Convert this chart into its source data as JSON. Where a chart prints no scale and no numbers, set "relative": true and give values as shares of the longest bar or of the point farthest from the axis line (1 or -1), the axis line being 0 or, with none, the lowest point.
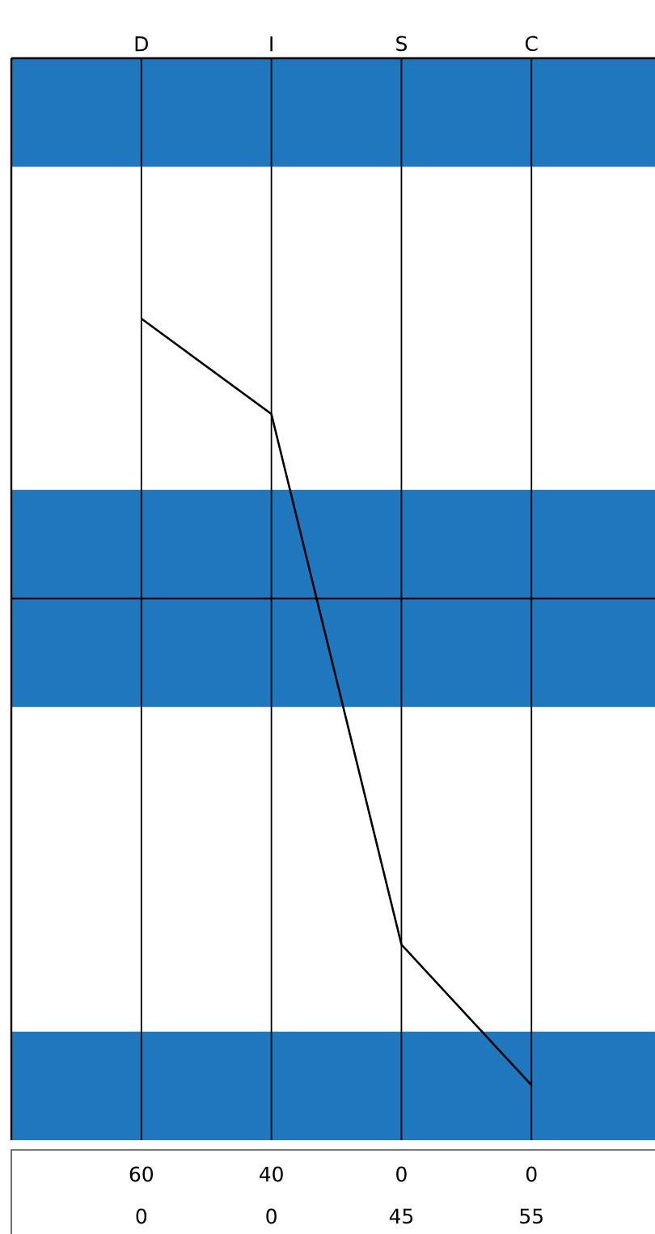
{
  "chart_data": {
    "type": "line",
    "relative": true,
    "categories": [
      "D",
      "I",
      "S",
      "C"
    ],
    "series": [
      {
        "color": "#000000",
        "values": [
          0.575,
          0.379,
          -0.711,
          -1
        ]
      }
    ],
    "bands": [
      {
        "axis": "y",
        "from": 0.887,
        "to": 1.11,
        "color": "#1f77bd"
      },
      {
        "axis": "y",
        "from": -0.223,
        "to": 0.223,
        "color": "#1f77bd"
      },
      {
        "axis": "y",
        "from": -1.113,
        "to": -0.89,
        "color": "#1f77bd"
      }
    ],
    "ref_lines": [
      {
        "axis": "y",
        "value": 0,
        "color": "#000000"
      }
    ],
    "annotations": [
      "60",
      "40",
      "0",
      "0",
      "0",
      "0",
      "45",
      "55"
    ],
    "grid": "x",
    "marker": "none",
    "line_style": "solid"
  }
}
